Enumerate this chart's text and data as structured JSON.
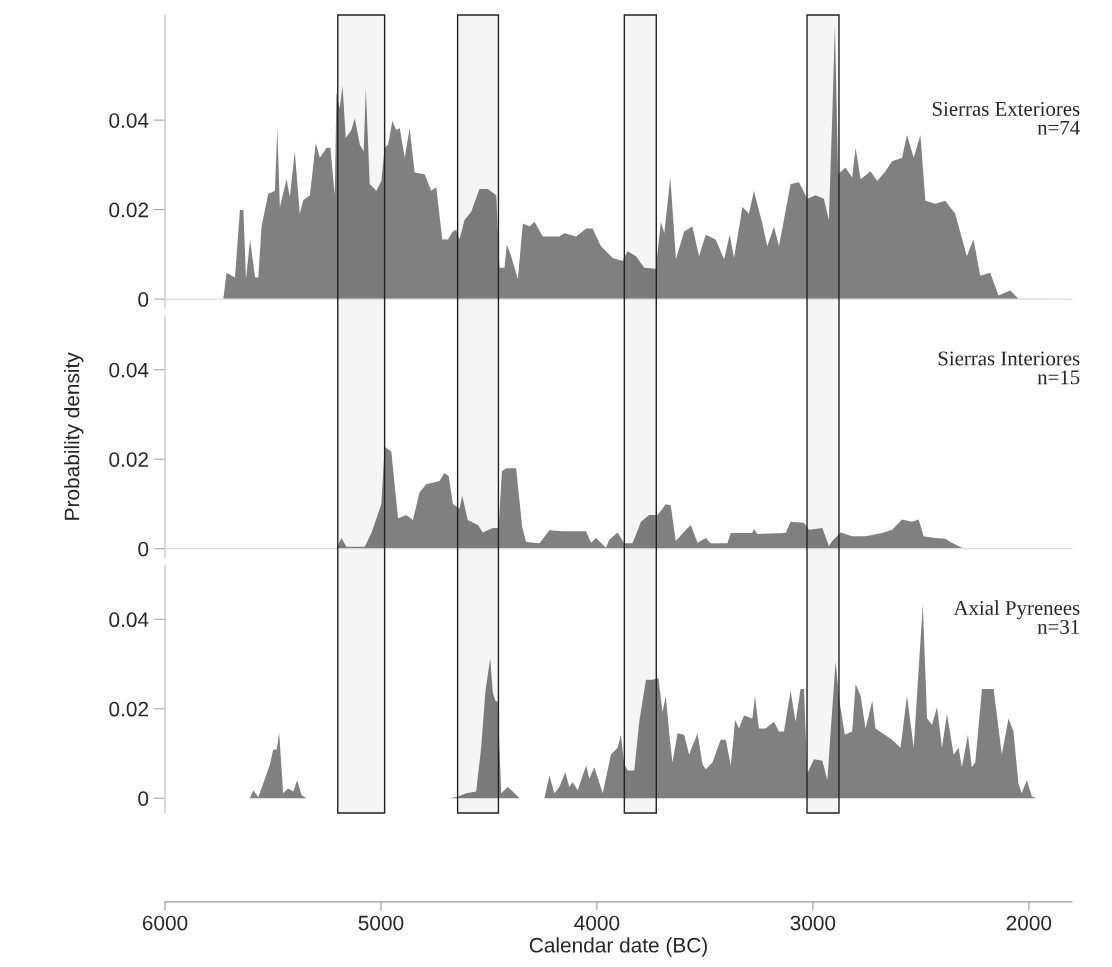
{
  "chart_data": [
    {
      "type": "area",
      "title": "Sierras Exteriores",
      "subtitle": "n=74",
      "color": "#808080",
      "xlim": [
        6000,
        1800
      ],
      "ylim": [
        -0.002,
        0.0635
      ],
      "yticks": [
        0,
        0.02,
        0.04
      ],
      "tick_labels": "y",
      "x": [
        5790,
        5730,
        5715,
        5676,
        5653,
        5637,
        5625,
        5606,
        5583,
        5568,
        5553,
        5522,
        5491,
        5480,
        5468,
        5437,
        5422,
        5399,
        5376,
        5360,
        5329,
        5302,
        5283,
        5252,
        5234,
        5214,
        5206,
        5191,
        5178,
        5163,
        5137,
        5121,
        5098,
        5080,
        5070,
        5052,
        5021,
        4998,
        4983,
        4967,
        4947,
        4929,
        4913,
        4890,
        4867,
        4844,
        4798,
        4767,
        4744,
        4716,
        4690,
        4667,
        4652,
        4636,
        4613,
        4582,
        4544,
        4505,
        4466,
        4451,
        4428,
        4417,
        4397,
        4366,
        4343,
        4312,
        4289,
        4251,
        4174,
        4150,
        4096,
        4050,
        4020,
        3981,
        3927,
        3881,
        3858,
        3819,
        3781,
        3727,
        3704,
        3688,
        3660,
        3634,
        3596,
        3558,
        3527,
        3496,
        3450,
        3411,
        3385,
        3365,
        3326,
        3296,
        3273,
        3234,
        3211,
        3180,
        3157,
        3103,
        3064,
        3026,
        2987,
        2949,
        2926,
        2910,
        2898,
        2883,
        2849,
        2818,
        2802,
        2779,
        2733,
        2702,
        2664,
        2633,
        2587,
        2564,
        2533,
        2502,
        2479,
        2433,
        2387,
        2341,
        2287,
        2256,
        2225,
        2179,
        2140,
        2086,
        2048,
        1810
      ],
      "values": [
        0,
        0,
        0.0059,
        0.0048,
        0.0199,
        0.0199,
        0.0045,
        0.0133,
        0.0048,
        0.0048,
        0.0162,
        0.0235,
        0.0242,
        0.0382,
        0.0206,
        0.0268,
        0.0228,
        0.033,
        0.0191,
        0.0221,
        0.0232,
        0.0349,
        0.0316,
        0.0338,
        0.0338,
        0.0232,
        0.0462,
        0.0426,
        0.0477,
        0.036,
        0.0378,
        0.0404,
        0.0345,
        0.033,
        0.0471,
        0.0257,
        0.0242,
        0.0264,
        0.0338,
        0.0345,
        0.0398,
        0.0378,
        0.0382,
        0.0316,
        0.0382,
        0.0283,
        0.0279,
        0.0242,
        0.025,
        0.0133,
        0.0133,
        0.0151,
        0.0155,
        0.0133,
        0.0177,
        0.0195,
        0.0246,
        0.0246,
        0.0232,
        0.007,
        0.007,
        0.0122,
        0.0096,
        0.0045,
        0.0169,
        0.0162,
        0.0173,
        0.014,
        0.014,
        0.0147,
        0.014,
        0.0158,
        0.0158,
        0.0118,
        0.0092,
        0.0085,
        0.0107,
        0.0096,
        0.007,
        0.0068,
        0.0173,
        0.0147,
        0.0272,
        0.0089,
        0.0151,
        0.0162,
        0.0096,
        0.0144,
        0.0133,
        0.0089,
        0.0144,
        0.0092,
        0.0206,
        0.0191,
        0.0242,
        0.0169,
        0.0118,
        0.0162,
        0.0118,
        0.0257,
        0.0261,
        0.0224,
        0.0232,
        0.0224,
        0.0177,
        0.0411,
        0.0612,
        0.0279,
        0.0294,
        0.0272,
        0.0338,
        0.0268,
        0.0286,
        0.0264,
        0.0286,
        0.0308,
        0.0316,
        0.0367,
        0.0316,
        0.0367,
        0.022,
        0.0213,
        0.022,
        0.0191,
        0.0096,
        0.0133,
        0.0052,
        0.0059,
        0.0008,
        0.0019,
        0.0001,
        0
      ]
    },
    {
      "type": "area",
      "title": "Sierras Interiores",
      "subtitle": "n=15",
      "ylabel": "Probability density",
      "color": "#808080",
      "xlim": [
        6000,
        1800
      ],
      "ylim": [
        -0.002,
        0.052
      ],
      "yticks": [
        0,
        0.02,
        0.04
      ],
      "tick_labels": "y",
      "x": [
        5206,
        5183,
        5160,
        5075,
        5044,
        4998,
        4983,
        4952,
        4921,
        4883,
        4852,
        4821,
        4790,
        4729,
        4706,
        4686,
        4667,
        4636,
        4624,
        4598,
        4551,
        4528,
        4482,
        4455,
        4440,
        4420,
        4374,
        4346,
        4328,
        4266,
        4220,
        4158,
        4050,
        4027,
        4004,
        3958,
        3943,
        3904,
        3874,
        3835,
        3796,
        3758,
        3719,
        3681,
        3658,
        3635,
        3588,
        3565,
        3534,
        3496,
        3473,
        3396,
        3380,
        3281,
        3273,
        3257,
        3126,
        3103,
        3041,
        3018,
        2956,
        2926,
        2910,
        2872,
        2818,
        2756,
        2679,
        2633,
        2587,
        2541,
        2510,
        2487,
        2433,
        2387,
        2356,
        2310,
        2217,
        2040
      ],
      "values": [
        0,
        0.0024,
        0.0004,
        0.0004,
        0.0035,
        0.01,
        0.0228,
        0.0217,
        0.0068,
        0.0075,
        0.0064,
        0.0126,
        0.0144,
        0.0151,
        0.0169,
        0.0162,
        0.01,
        0.0089,
        0.0119,
        0.0064,
        0.0053,
        0.0036,
        0.0046,
        0.0046,
        0.0173,
        0.018,
        0.018,
        0.0049,
        0.0015,
        0.0012,
        0.0041,
        0.0039,
        0.0039,
        0.0013,
        0.0024,
        0.0002,
        0.002,
        0.0036,
        0.0012,
        0.0012,
        0.006,
        0.0075,
        0.0075,
        0.0099,
        0.0097,
        0.0017,
        0.0042,
        0.0053,
        0.0013,
        0.0024,
        0.0012,
        0.0012,
        0.0035,
        0.0035,
        0.0044,
        0.0033,
        0.0035,
        0.006,
        0.0058,
        0.0042,
        0.0046,
        0.0006,
        0.0017,
        0.0036,
        0.0028,
        0.0028,
        0.0035,
        0.0042,
        0.0065,
        0.006,
        0.0065,
        0.0028,
        0.0024,
        0.0022,
        0.0013,
        0.0002,
        0,
        0
      ]
    },
    {
      "type": "area",
      "title": "Axial Pyrenees",
      "subtitle": "n=31",
      "xlabel": "Calendar date (BC)",
      "color": "#808080",
      "xlim": [
        6000,
        1800
      ],
      "xticks": [
        6000,
        5000,
        4000,
        3000,
        2000
      ],
      "ylim": [
        -0.0033,
        0.052
      ],
      "yticks": [
        0,
        0.02,
        0.04
      ],
      "x": [
        5668,
        5607,
        5591,
        5568,
        5545,
        5514,
        5499,
        5483,
        5471,
        5453,
        5430,
        5406,
        5388,
        5368,
        5345,
        4682,
        4643,
        4605,
        4559,
        4536,
        4516,
        4494,
        4482,
        4470,
        4459,
        4443,
        4413,
        4390,
        4366,
        4359,
        4243,
        4220,
        4197,
        4174,
        4146,
        4128,
        4112,
        4089,
        4050,
        4035,
        4012,
        3973,
        3935,
        3904,
        3889,
        3873,
        3858,
        3827,
        3804,
        3773,
        3742,
        3715,
        3696,
        3681,
        3663,
        3650,
        3627,
        3596,
        3573,
        3534,
        3511,
        3496,
        3465,
        3427,
        3403,
        3380,
        3360,
        3342,
        3319,
        3280,
        3268,
        3250,
        3219,
        3180,
        3157,
        3134,
        3103,
        3080,
        3057,
        3041,
        3026,
        2995,
        2956,
        2933,
        2895,
        2876,
        2852,
        2818,
        2802,
        2779,
        2756,
        2725,
        2710,
        2633,
        2594,
        2564,
        2533,
        2491,
        2471,
        2448,
        2425,
        2402,
        2379,
        2348,
        2325,
        2310,
        2282,
        2264,
        2248,
        2217,
        2163,
        2125,
        2094,
        2071,
        2048,
        2033,
        2009,
        1986,
        1963
      ],
      "values": [
        0,
        0,
        0.0018,
        0.0002,
        0.0033,
        0.0076,
        0.0109,
        0.0109,
        0.0145,
        0.0011,
        0.0022,
        0.0015,
        0.004,
        0.0007,
        0,
        0,
        0.0004,
        0.0011,
        0.0015,
        0.0113,
        0.024,
        0.0313,
        0.0236,
        0.0218,
        0.0215,
        0.0011,
        0.0025,
        0.0015,
        0.0004,
        0,
        0,
        0.0051,
        0.0011,
        0.0025,
        0.0058,
        0.0025,
        0.0036,
        0.0018,
        0.0073,
        0.0044,
        0.0069,
        0.0011,
        0.0098,
        0.0113,
        0.0142,
        0.0076,
        0.0062,
        0.0062,
        0.0171,
        0.0265,
        0.0265,
        0.0269,
        0.0193,
        0.0229,
        0.0135,
        0.008,
        0.0145,
        0.0142,
        0.0098,
        0.0145,
        0.0076,
        0.0065,
        0.008,
        0.0131,
        0.0131,
        0.0073,
        0.0175,
        0.0156,
        0.0185,
        0.0178,
        0.0229,
        0.0156,
        0.0156,
        0.0171,
        0.0149,
        0.0149,
        0.024,
        0.0171,
        0.0244,
        0.0244,
        0.0055,
        0.0087,
        0.0084,
        0.004,
        0.0305,
        0.0215,
        0.0142,
        0.0149,
        0.0255,
        0.0229,
        0.0156,
        0.0218,
        0.0156,
        0.0131,
        0.0113,
        0.0229,
        0.0113,
        0.0433,
        0.0178,
        0.0164,
        0.0204,
        0.0113,
        0.0189,
        0.0098,
        0.0113,
        0.0069,
        0.0142,
        0.0069,
        0.008,
        0.0244,
        0.0244,
        0.0098,
        0.0178,
        0.0149,
        0.0033,
        0.0011,
        0.004,
        0.0004,
        0
      ],
      "bands": [
        {
          "axis": "x",
          "from": 5200,
          "to": 4983
        },
        {
          "axis": "x",
          "from": 4645,
          "to": 4456
        },
        {
          "axis": "x",
          "from": 3873,
          "to": 3725
        },
        {
          "axis": "x",
          "from": 3027,
          "to": 2879
        }
      ]
    }
  ]
}
